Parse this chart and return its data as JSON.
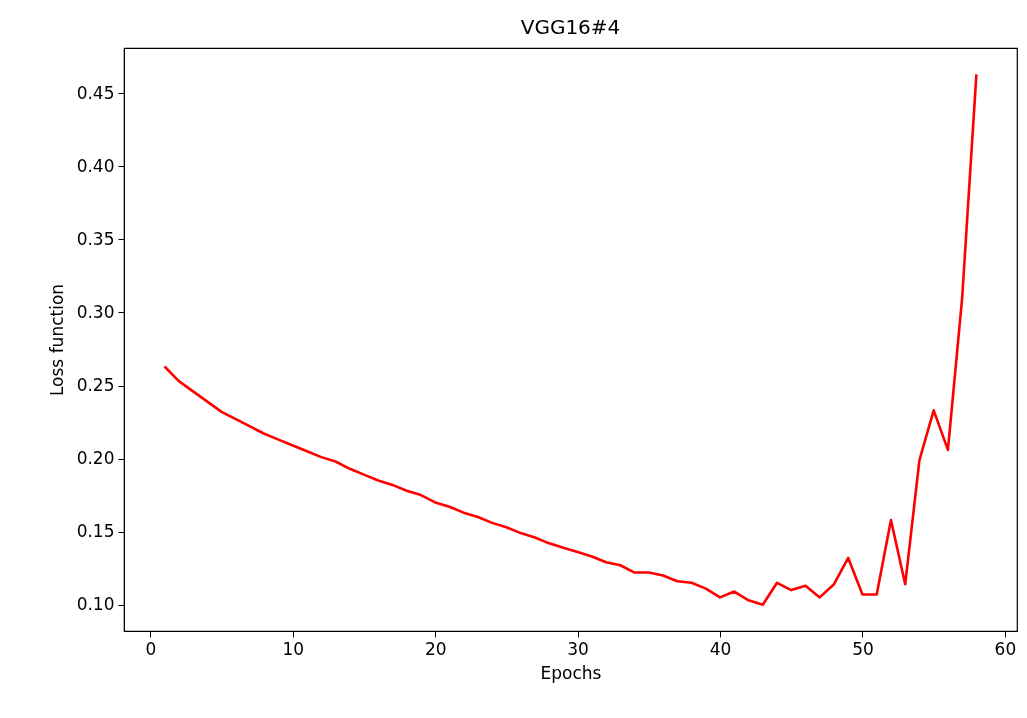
{
  "chart_data": {
    "type": "line",
    "title": "VGG16#4",
    "xlabel": "Epochs",
    "ylabel": "Loss function",
    "x": [
      1,
      2,
      3,
      4,
      5,
      6,
      7,
      8,
      9,
      10,
      11,
      12,
      13,
      14,
      15,
      16,
      17,
      18,
      19,
      20,
      21,
      22,
      23,
      24,
      25,
      26,
      27,
      28,
      29,
      30,
      31,
      32,
      33,
      34,
      35,
      36,
      37,
      38,
      39,
      40,
      41,
      42,
      43,
      44,
      45,
      46,
      47,
      48,
      49,
      50,
      51,
      52,
      53,
      54,
      55,
      56,
      57,
      58
    ],
    "series": [
      {
        "color": "#ff0000",
        "values": [
          0.263,
          0.253,
          0.246,
          0.239,
          0.232,
          0.227,
          0.222,
          0.217,
          0.213,
          0.209,
          0.205,
          0.201,
          0.198,
          0.193,
          0.189,
          0.185,
          0.182,
          0.178,
          0.175,
          0.17,
          0.167,
          0.163,
          0.16,
          0.156,
          0.153,
          0.149,
          0.146,
          0.142,
          0.139,
          0.136,
          0.133,
          0.129,
          0.127,
          0.122,
          0.122,
          0.12,
          0.116,
          0.115,
          0.111,
          0.105,
          0.109,
          0.103,
          0.1,
          0.115,
          0.11,
          0.113,
          0.105,
          0.114,
          0.132,
          0.107,
          0.107,
          0.158,
          0.114,
          0.199,
          0.233,
          0.206,
          0.31,
          0.463
        ]
      }
    ],
    "xlim": [
      -1.85,
      60.85
    ],
    "ylim": [
      0.082,
      0.481
    ],
    "xticks": [
      0,
      10,
      20,
      30,
      40,
      50,
      60
    ],
    "yticks": [
      {
        "value": 0.1,
        "label": "0.10"
      },
      {
        "value": 0.15,
        "label": "0.15"
      },
      {
        "value": 0.2,
        "label": "0.20"
      },
      {
        "value": 0.25,
        "label": "0.25"
      },
      {
        "value": 0.3,
        "label": "0.30"
      },
      {
        "value": 0.35,
        "label": "0.35"
      },
      {
        "value": 0.4,
        "label": "0.40"
      },
      {
        "value": 0.45,
        "label": "0.45"
      }
    ],
    "grid": false,
    "marker": "none",
    "line_style": "solid"
  }
}
